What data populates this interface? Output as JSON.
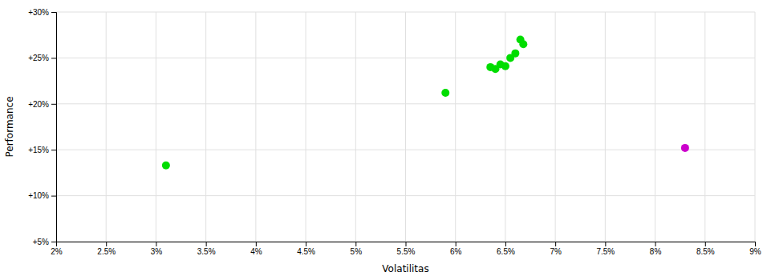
{
  "chart_data": {
    "type": "scatter",
    "xlabel": "Volatilitas",
    "ylabel": "Performance",
    "xlim": [
      0.02,
      0.09
    ],
    "ylim": [
      0.05,
      0.3
    ],
    "xticks": [
      {
        "value": 0.02,
        "label": "2%"
      },
      {
        "value": 0.025,
        "label": "2.5%"
      },
      {
        "value": 0.03,
        "label": "3%"
      },
      {
        "value": 0.035,
        "label": "3.5%"
      },
      {
        "value": 0.04,
        "label": "4%"
      },
      {
        "value": 0.045,
        "label": "4.5%"
      },
      {
        "value": 0.05,
        "label": "5%"
      },
      {
        "value": 0.055,
        "label": "5.5%"
      },
      {
        "value": 0.06,
        "label": "6%"
      },
      {
        "value": 0.065,
        "label": "6.5%"
      },
      {
        "value": 0.07,
        "label": "7%"
      },
      {
        "value": 0.075,
        "label": "7.5%"
      },
      {
        "value": 0.08,
        "label": "8%"
      },
      {
        "value": 0.085,
        "label": "8.5%"
      },
      {
        "value": 0.09,
        "label": "9%"
      }
    ],
    "yticks": [
      {
        "value": 0.05,
        "label": "+5%"
      },
      {
        "value": 0.1,
        "label": "+10%"
      },
      {
        "value": 0.15,
        "label": "+15%"
      },
      {
        "value": 0.2,
        "label": "+20%"
      },
      {
        "value": 0.25,
        "label": "+25%"
      },
      {
        "value": 0.3,
        "label": "+30%"
      }
    ],
    "grid": true,
    "series": [
      {
        "color": "#00dd00",
        "x": [
          0.031,
          0.059,
          0.0635,
          0.064,
          0.0645,
          0.065,
          0.0655,
          0.066,
          0.0665,
          0.0668
        ],
        "values": [
          0.133,
          0.212,
          0.24,
          0.238,
          0.243,
          0.241,
          0.25,
          0.255,
          0.27,
          0.265
        ]
      },
      {
        "color": "#cc00cc",
        "x": [
          0.083
        ],
        "values": [
          0.152
        ]
      }
    ]
  }
}
